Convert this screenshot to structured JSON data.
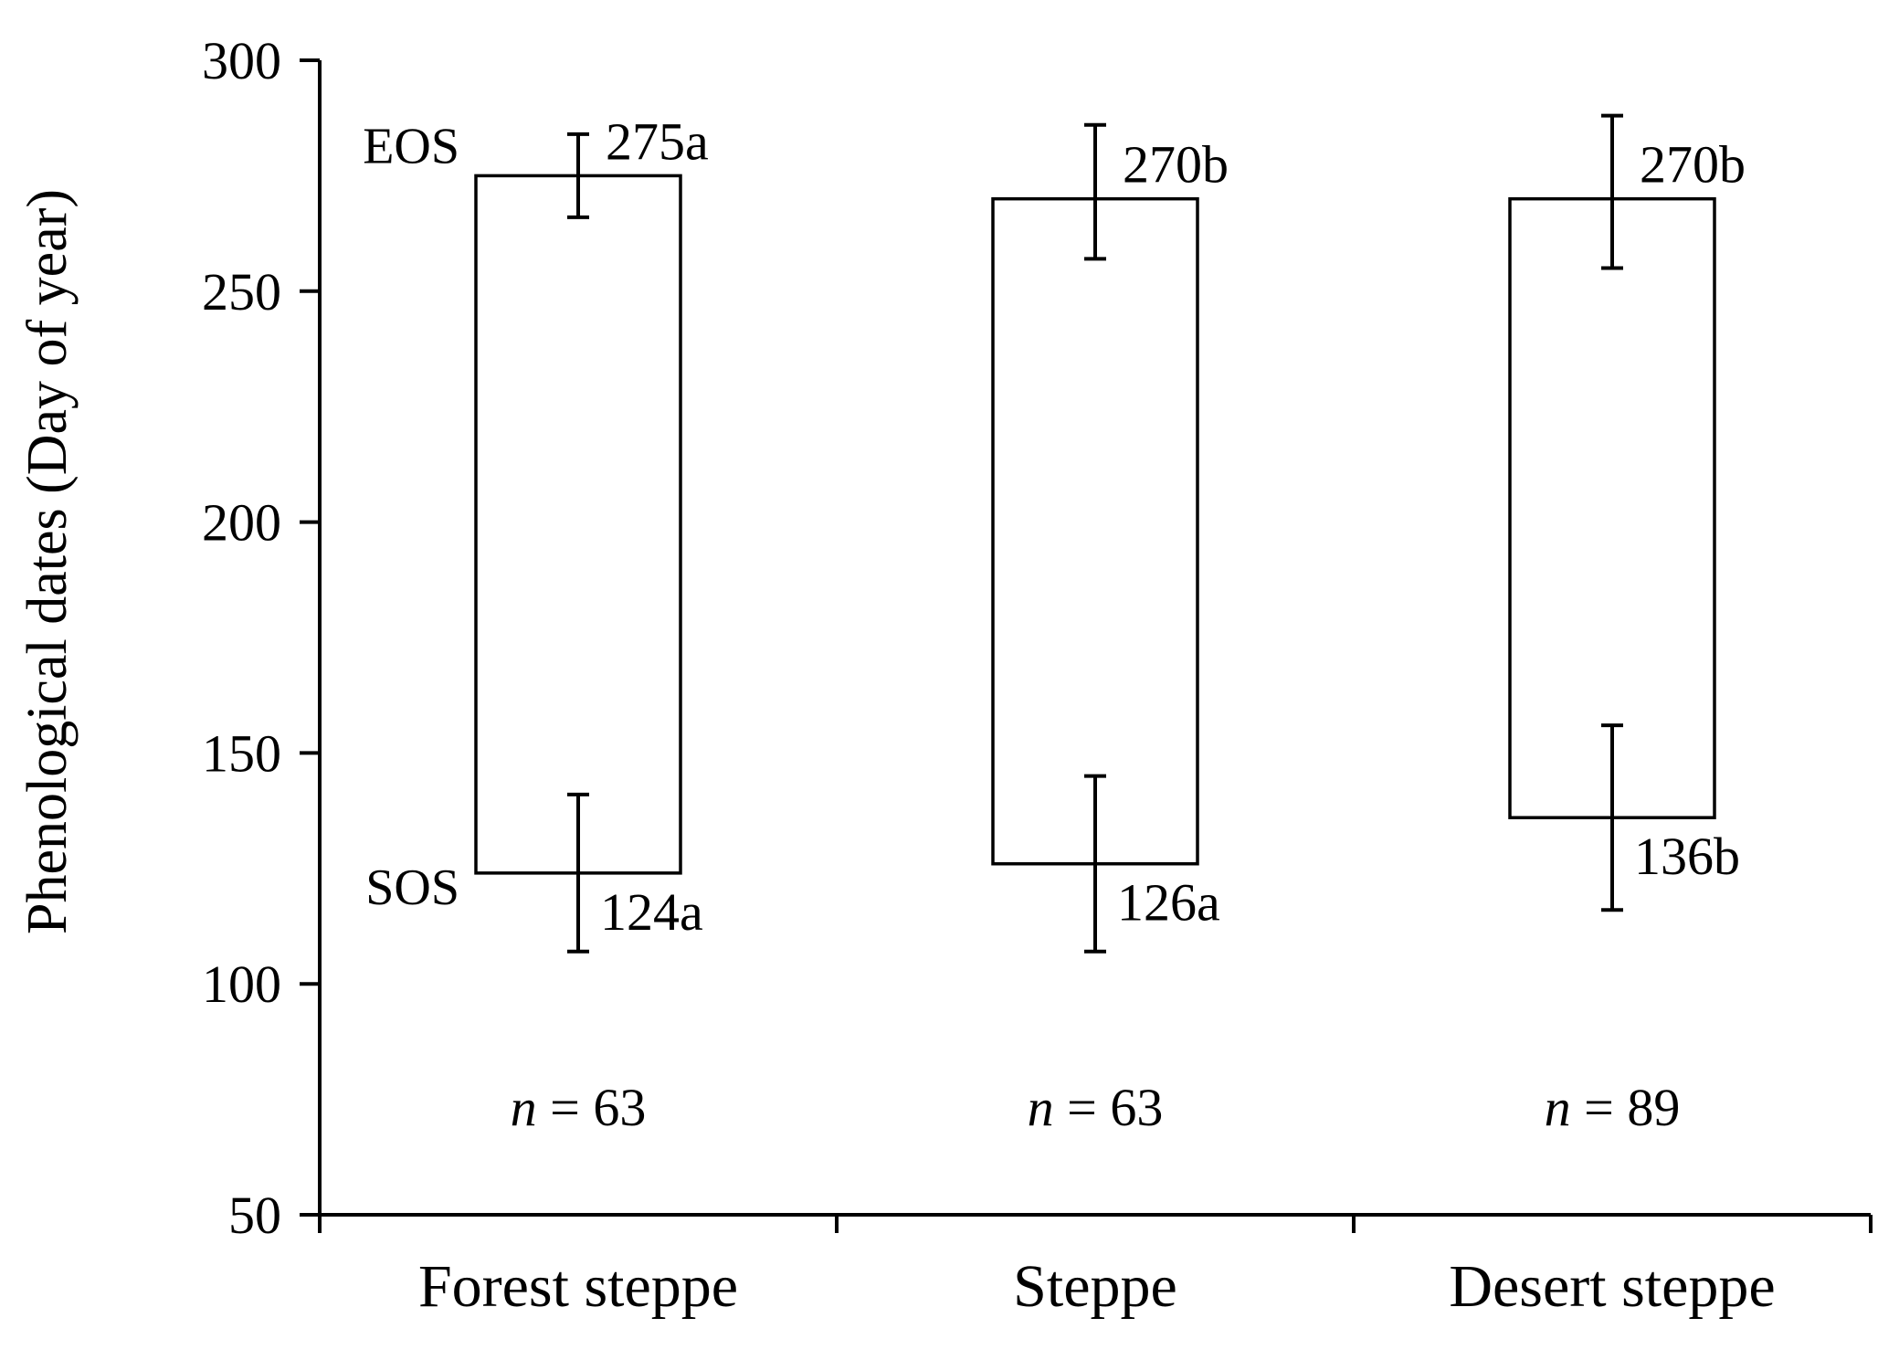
{
  "chart_data": {
    "type": "floating-bar",
    "categories": [
      "Forest steppe",
      "Steppe",
      "Desert steppe"
    ],
    "ylabel": "Phenological dates (Day of year)",
    "ylim": [
      50,
      300
    ],
    "yticks": [
      50,
      100,
      150,
      200,
      250,
      300
    ],
    "series": [
      {
        "name": "EOS",
        "values": [
          275,
          270,
          270
        ],
        "error_high": [
          284,
          286,
          288
        ],
        "error_low": [
          266,
          257,
          255
        ],
        "labels": [
          "275a",
          "270b",
          "270b"
        ]
      },
      {
        "name": "SOS",
        "values": [
          124,
          126,
          136
        ],
        "error_high": [
          141,
          145,
          156
        ],
        "error_low": [
          107,
          107,
          116
        ],
        "labels": [
          "124a",
          "126a",
          "136b"
        ]
      }
    ],
    "sample_sizes": [
      {
        "symbol": "n",
        "text": " = 63"
      },
      {
        "symbol": "n",
        "text": " = 63"
      },
      {
        "symbol": "n",
        "text": " = 89"
      }
    ],
    "end_labels": {
      "top": "EOS",
      "bottom": "SOS"
    }
  }
}
